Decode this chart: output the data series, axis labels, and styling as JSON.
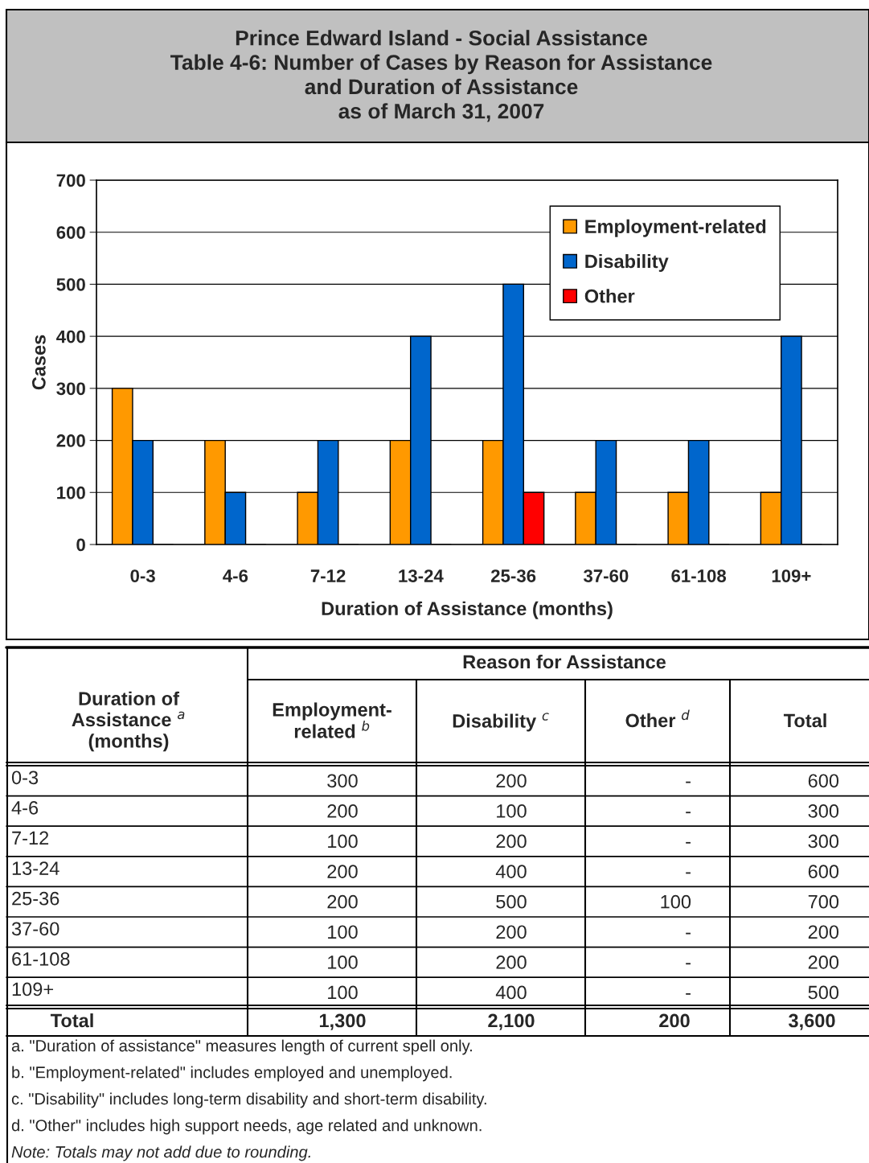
{
  "chart_data": {
    "type": "bar",
    "title": "Prince Edward Island - Social Assistance\nTable 4-6: Number of Cases by Reason for Assistance\nand Duration of Assistance\nas of March 31, 2007",
    "xlabel": "Duration of Assistance (months)",
    "ylabel": "Cases",
    "categories": [
      "0-3",
      "4-6",
      "7-12",
      "13-24",
      "25-36",
      "37-60",
      "61-108",
      "109+"
    ],
    "series": [
      {
        "name": "Employment-related",
        "color": "#ff9900",
        "values": [
          300,
          200,
          100,
          200,
          200,
          100,
          100,
          100
        ]
      },
      {
        "name": "Disability",
        "color": "#0066cc",
        "values": [
          200,
          100,
          200,
          400,
          500,
          200,
          200,
          400
        ]
      },
      {
        "name": "Other",
        "color": "#ff0000",
        "values": [
          0,
          0,
          0,
          0,
          100,
          0,
          0,
          0
        ]
      }
    ],
    "ylim": [
      0,
      700
    ],
    "yticks": [
      0,
      100,
      200,
      300,
      400,
      500,
      600,
      700
    ],
    "grid": "y",
    "legend": "top right",
    "annotations": [
      "Reason for Assistance",
      "Duration of\nAssistance $^{a}$\n(months)",
      "Employment-\nrelated $^{b}$",
      "Disability $^{c}$",
      "Other $^{d}$",
      "Total",
      "Total",
      "1,300",
      "2,100",
      "200",
      "3,600",
      "300",
      "200",
      "-",
      "600",
      "200",
      "100",
      "-",
      "300",
      "100",
      "200",
      "-",
      "300",
      "200",
      "400",
      "-",
      "600",
      "200",
      "500",
      "100",
      "700",
      "100",
      "200",
      "-",
      "200",
      "100",
      "200",
      "-",
      "200",
      "100",
      "400",
      "-",
      "500",
      "a. \"Duration of assistance\" measures length of current spell only.",
      "b. \"Employment-related\" includes employed and unemployed.",
      "c. \"Disability\" includes long-term disability and short-term disability.",
      "d. \"Other\" includes high support needs, age related and unknown.",
      "Note: Totals may not add due to rounding."
    ]
  }
}
